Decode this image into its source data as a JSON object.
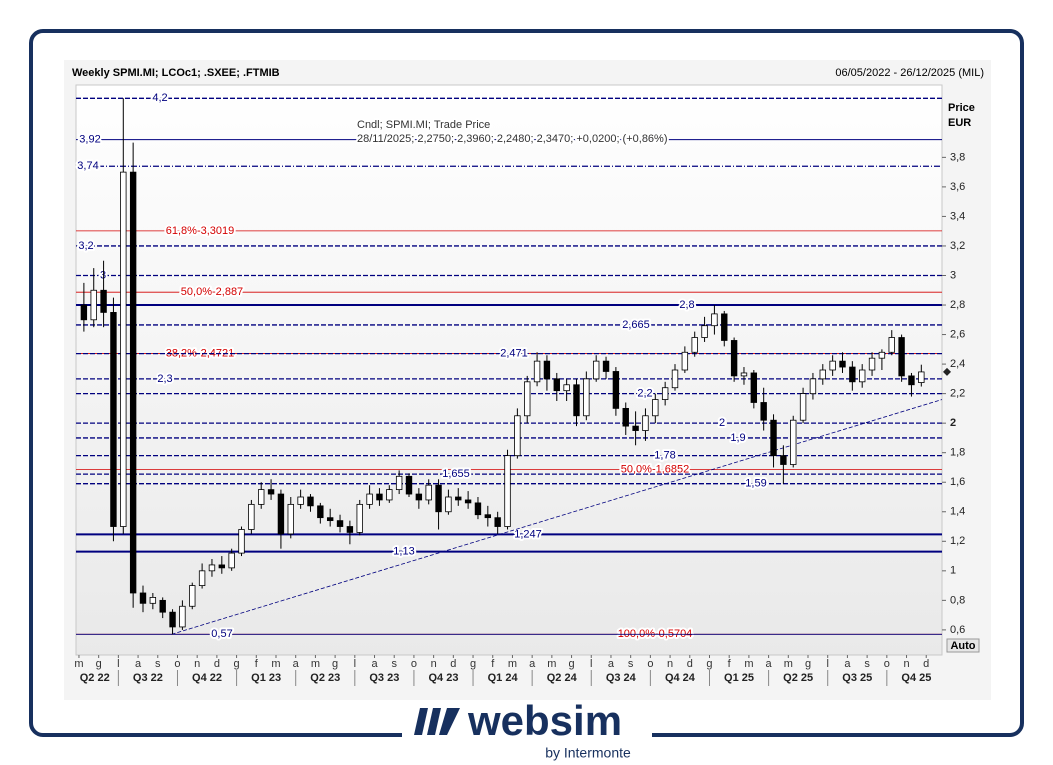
{
  "chart_data": {
    "type": "candlestick",
    "title": "Weekly SPMI.MI; LCOc1; .SXEE; .FTMIB",
    "date_range": "06/05/2022 - 26/12/2025 (MIL)",
    "y_axis_label": "Price",
    "y_axis_unit": "EUR",
    "scale_mode": "Auto",
    "legend": [
      "Cndl; SPMI.MI; Trade Price",
      "28/11/2025; 2,2750; 2,3960; 2,2480; 2,3470; +0,0200; (+0,86%)"
    ],
    "xlim": [
      -0.15,
      43.8
    ],
    "ylim": [
      0.43,
      4.29
    ],
    "xticks": [
      {
        "value": 0,
        "label": "m"
      },
      {
        "value": 1,
        "label": "g"
      },
      {
        "value": 2,
        "label": "l"
      },
      {
        "value": 3,
        "label": "a"
      },
      {
        "value": 4,
        "label": "s"
      },
      {
        "value": 5,
        "label": "o"
      },
      {
        "value": 6,
        "label": "n"
      },
      {
        "value": 7,
        "label": "d"
      },
      {
        "value": 8,
        "label": "g"
      },
      {
        "value": 9,
        "label": "f"
      },
      {
        "value": 10,
        "label": "m"
      },
      {
        "value": 11,
        "label": "a"
      },
      {
        "value": 12,
        "label": "m"
      },
      {
        "value": 13,
        "label": "g"
      },
      {
        "value": 14,
        "label": "l"
      },
      {
        "value": 15,
        "label": "a"
      },
      {
        "value": 16,
        "label": "s"
      },
      {
        "value": 17,
        "label": "o"
      },
      {
        "value": 18,
        "label": "n"
      },
      {
        "value": 19,
        "label": "d"
      },
      {
        "value": 20,
        "label": "g"
      },
      {
        "value": 21,
        "label": "f"
      },
      {
        "value": 22,
        "label": "m"
      },
      {
        "value": 23,
        "label": "a"
      },
      {
        "value": 24,
        "label": "m"
      },
      {
        "value": 25,
        "label": "g"
      },
      {
        "value": 26,
        "label": "l"
      },
      {
        "value": 27,
        "label": "a"
      },
      {
        "value": 28,
        "label": "s"
      },
      {
        "value": 29,
        "label": "o"
      },
      {
        "value": 30,
        "label": "n"
      },
      {
        "value": 31,
        "label": "d"
      },
      {
        "value": 32,
        "label": "g"
      },
      {
        "value": 33,
        "label": "f"
      },
      {
        "value": 34,
        "label": "m"
      },
      {
        "value": 35,
        "label": "a"
      },
      {
        "value": 36,
        "label": "m"
      },
      {
        "value": 37,
        "label": "g"
      },
      {
        "value": 38,
        "label": "l"
      },
      {
        "value": 39,
        "label": "a"
      },
      {
        "value": 40,
        "label": "s"
      },
      {
        "value": 41,
        "label": "o"
      },
      {
        "value": 42,
        "label": "n"
      },
      {
        "value": 43,
        "label": "d"
      }
    ],
    "quarter_ticks": [
      {
        "value": 0.8,
        "label": "Q2 22"
      },
      {
        "value": 3.5,
        "label": "Q3 22"
      },
      {
        "value": 6.5,
        "label": "Q4 22"
      },
      {
        "value": 9.5,
        "label": "Q1 23"
      },
      {
        "value": 12.5,
        "label": "Q2 23"
      },
      {
        "value": 15.5,
        "label": "Q3 23"
      },
      {
        "value": 18.5,
        "label": "Q4 23"
      },
      {
        "value": 21.5,
        "label": "Q1 24"
      },
      {
        "value": 24.5,
        "label": "Q2 24"
      },
      {
        "value": 27.5,
        "label": "Q3 24"
      },
      {
        "value": 30.5,
        "label": "Q4 24"
      },
      {
        "value": 33.5,
        "label": "Q1 25"
      },
      {
        "value": 36.5,
        "label": "Q2 25"
      },
      {
        "value": 39.5,
        "label": "Q3 25"
      },
      {
        "value": 42.5,
        "label": "Q4 25"
      }
    ],
    "yticks": [
      {
        "value": 0.6,
        "label": "0,6"
      },
      {
        "value": 0.8,
        "label": "0,8"
      },
      1,
      {
        "value": 1.2,
        "label": "1,2"
      },
      {
        "value": 1.4,
        "label": "1,4"
      },
      {
        "value": 1.6,
        "label": "1,6"
      },
      {
        "value": 1.8,
        "label": "1,8"
      },
      2,
      {
        "value": 2.2,
        "label": "2,2"
      },
      {
        "value": 2.4,
        "label": "2,4"
      },
      {
        "value": 2.6,
        "label": "2,6"
      },
      {
        "value": 2.8,
        "label": "2,8"
      },
      3,
      {
        "value": 3.2,
        "label": "3,2"
      },
      {
        "value": 3.4,
        "label": "3,4"
      },
      {
        "value": 3.6,
        "label": "3,6"
      },
      {
        "value": 3.8,
        "label": "3,8"
      }
    ],
    "series": [
      {
        "name": "SPMI.MI",
        "up_color": "#ffffff",
        "down_color": "#000000",
        "x": [
          0.25,
          0.75,
          1.25,
          1.75,
          2.25,
          2.75,
          3.25,
          3.75,
          4.25,
          4.75,
          5.25,
          5.75,
          6.25,
          6.75,
          7.25,
          7.75,
          8.25,
          8.75,
          9.25,
          9.75,
          10.25,
          10.75,
          11.25,
          11.75,
          12.25,
          12.75,
          13.25,
          13.75,
          14.25,
          14.75,
          15.25,
          15.75,
          16.25,
          16.75,
          17.25,
          17.75,
          18.25,
          18.75,
          19.25,
          19.75,
          20.25,
          20.75,
          21.25,
          21.75,
          22.25,
          22.75,
          23.25,
          23.75,
          24.25,
          24.75,
          25.25,
          25.75,
          26.25,
          26.75,
          27.25,
          27.75,
          28.25,
          28.75,
          29.25,
          29.75,
          30.25,
          30.75,
          31.25,
          31.75,
          32.25,
          32.75,
          33.25,
          33.75,
          34.25,
          34.75,
          35.25,
          35.75,
          36.25,
          36.75,
          37.25,
          37.75,
          38.25,
          38.75,
          39.25,
          39.75,
          40.25,
          40.75,
          41.25,
          41.75,
          42.25,
          42.75
        ],
        "open": [
          2.8,
          2.7,
          2.9,
          2.75,
          1.3,
          3.7,
          0.85,
          0.78,
          0.8,
          0.72,
          0.62,
          0.76,
          0.9,
          1.0,
          1.04,
          1.02,
          1.12,
          1.28,
          1.45,
          1.55,
          1.52,
          1.25,
          1.45,
          1.5,
          1.44,
          1.36,
          1.34,
          1.3,
          1.26,
          1.45,
          1.52,
          1.48,
          1.55,
          1.64,
          1.52,
          1.48,
          1.58,
          1.4,
          1.5,
          1.48,
          1.46,
          1.38,
          1.36,
          1.3,
          1.78,
          2.05,
          2.28,
          2.42,
          2.3,
          2.22,
          2.26,
          2.05,
          2.3,
          2.42,
          2.35,
          2.1,
          1.98,
          1.95,
          2.05,
          2.16,
          2.24,
          2.36,
          2.48,
          2.58,
          2.66,
          2.74,
          2.56,
          2.32,
          2.34,
          2.14,
          2.02,
          1.78,
          1.72,
          2.02,
          2.2,
          2.3,
          2.36,
          2.42,
          2.38,
          2.28,
          2.36,
          2.44,
          2.48,
          2.58,
          2.32,
          2.275
        ],
        "high": [
          2.95,
          3.05,
          3.1,
          2.85,
          4.2,
          3.9,
          0.9,
          0.85,
          0.82,
          0.74,
          0.8,
          0.92,
          1.05,
          1.08,
          1.1,
          1.15,
          1.3,
          1.48,
          1.6,
          1.62,
          1.55,
          1.5,
          1.55,
          1.52,
          1.46,
          1.42,
          1.38,
          1.34,
          1.48,
          1.58,
          1.56,
          1.58,
          1.68,
          1.66,
          1.56,
          1.62,
          1.62,
          1.55,
          1.56,
          1.54,
          1.5,
          1.44,
          1.4,
          1.82,
          2.1,
          2.32,
          2.48,
          2.46,
          2.34,
          2.3,
          2.3,
          2.35,
          2.46,
          2.45,
          2.38,
          2.14,
          2.08,
          2.1,
          2.2,
          2.28,
          2.4,
          2.52,
          2.62,
          2.72,
          2.8,
          2.76,
          2.58,
          2.38,
          2.36,
          2.24,
          2.06,
          1.85,
          2.05,
          2.24,
          2.34,
          2.4,
          2.46,
          2.48,
          2.42,
          2.4,
          2.48,
          2.5,
          2.63,
          2.6,
          2.34,
          2.396
        ],
        "low": [
          2.62,
          2.65,
          2.65,
          1.2,
          1.25,
          0.75,
          0.72,
          0.74,
          0.68,
          0.57,
          0.6,
          0.74,
          0.88,
          0.96,
          0.98,
          1.0,
          1.1,
          1.25,
          1.42,
          1.48,
          1.15,
          1.22,
          1.42,
          1.4,
          1.32,
          1.3,
          1.26,
          1.18,
          1.24,
          1.42,
          1.44,
          1.46,
          1.52,
          1.5,
          1.42,
          1.45,
          1.28,
          1.38,
          1.44,
          1.42,
          1.35,
          1.3,
          1.25,
          1.28,
          1.76,
          2.0,
          2.25,
          2.22,
          2.15,
          2.15,
          1.98,
          2.02,
          2.28,
          2.3,
          2.05,
          1.92,
          1.85,
          1.88,
          2.0,
          2.12,
          2.22,
          2.34,
          2.45,
          2.55,
          2.6,
          2.52,
          2.28,
          2.26,
          2.1,
          1.95,
          1.7,
          1.59,
          1.7,
          2.0,
          2.16,
          2.26,
          2.32,
          2.34,
          2.22,
          2.24,
          2.32,
          2.36,
          2.46,
          2.28,
          2.18,
          2.248
        ],
        "close": [
          2.7,
          2.9,
          2.75,
          1.3,
          3.7,
          0.85,
          0.78,
          0.82,
          0.72,
          0.62,
          0.76,
          0.9,
          1.0,
          1.04,
          1.02,
          1.12,
          1.28,
          1.45,
          1.55,
          1.52,
          1.25,
          1.45,
          1.5,
          1.44,
          1.36,
          1.34,
          1.3,
          1.26,
          1.45,
          1.52,
          1.48,
          1.55,
          1.64,
          1.52,
          1.48,
          1.58,
          1.4,
          1.5,
          1.48,
          1.46,
          1.38,
          1.36,
          1.3,
          1.78,
          2.05,
          2.28,
          2.42,
          2.3,
          2.22,
          2.26,
          2.05,
          2.3,
          2.42,
          2.35,
          2.1,
          1.98,
          1.95,
          2.05,
          2.16,
          2.24,
          2.36,
          2.48,
          2.58,
          2.66,
          2.74,
          2.56,
          2.32,
          2.34,
          2.14,
          2.02,
          1.78,
          1.72,
          2.02,
          2.2,
          2.3,
          2.36,
          2.42,
          2.38,
          2.28,
          2.36,
          2.44,
          2.48,
          2.58,
          2.32,
          2.26,
          2.347
        ]
      }
    ],
    "levels": [
      {
        "value": 4.2,
        "label": "4,2",
        "style": "dashed"
      },
      {
        "value": 3.92,
        "label": "3,92",
        "style": "solid"
      },
      {
        "value": 3.74,
        "label": "3,74",
        "style": "dashdot"
      },
      {
        "value": 3.2,
        "label": "3,2",
        "style": "dashed"
      },
      {
        "value": 3,
        "label": "3",
        "style": "dashed"
      },
      {
        "value": 2.8,
        "label": "2,8",
        "style": "thick"
      },
      {
        "value": 2.665,
        "label": "2,665",
        "style": "dashed"
      },
      {
        "value": 2.471,
        "label": "2,471",
        "style": "dashed"
      },
      {
        "value": 2.3,
        "label": "2,3",
        "style": "dashed"
      },
      {
        "value": 2.2,
        "label": "2,2",
        "style": "dashed"
      },
      {
        "value": 2,
        "label": "2",
        "style": "dashed"
      },
      {
        "value": 1.9,
        "label": "1,9",
        "style": "dashed"
      },
      {
        "value": 1.78,
        "label": "1,78",
        "style": "dashed"
      },
      {
        "value": 1.655,
        "label": "1,655",
        "style": "dashed"
      },
      {
        "value": 1.59,
        "label": "1,59",
        "style": "dashed"
      },
      {
        "value": 1.247,
        "label": "1,247",
        "style": "thick"
      },
      {
        "value": 1.13,
        "label": "1,13",
        "style": "thick"
      },
      {
        "value": 0.57,
        "label": "0,57",
        "style": "solid"
      }
    ],
    "level_color": "#00007f",
    "fib_levels": [
      {
        "value": 3.3019,
        "label": "61,8%-3,3019"
      },
      {
        "value": 2.887,
        "label": "50,0%-2,887"
      },
      {
        "value": 2.4721,
        "label": "38,2%-2,4721"
      },
      {
        "value": 1.6852,
        "label": "50,0%-1,6852"
      },
      {
        "value": 0.5704,
        "label": "100,0%-0,5704"
      }
    ],
    "fib_color": "#d40000",
    "trendline": {
      "x": [
        4.7,
        43.8
      ],
      "y": [
        0.57,
        2.16
      ]
    }
  },
  "logo": {
    "name": "websim",
    "tagline": "by Intermonte"
  }
}
